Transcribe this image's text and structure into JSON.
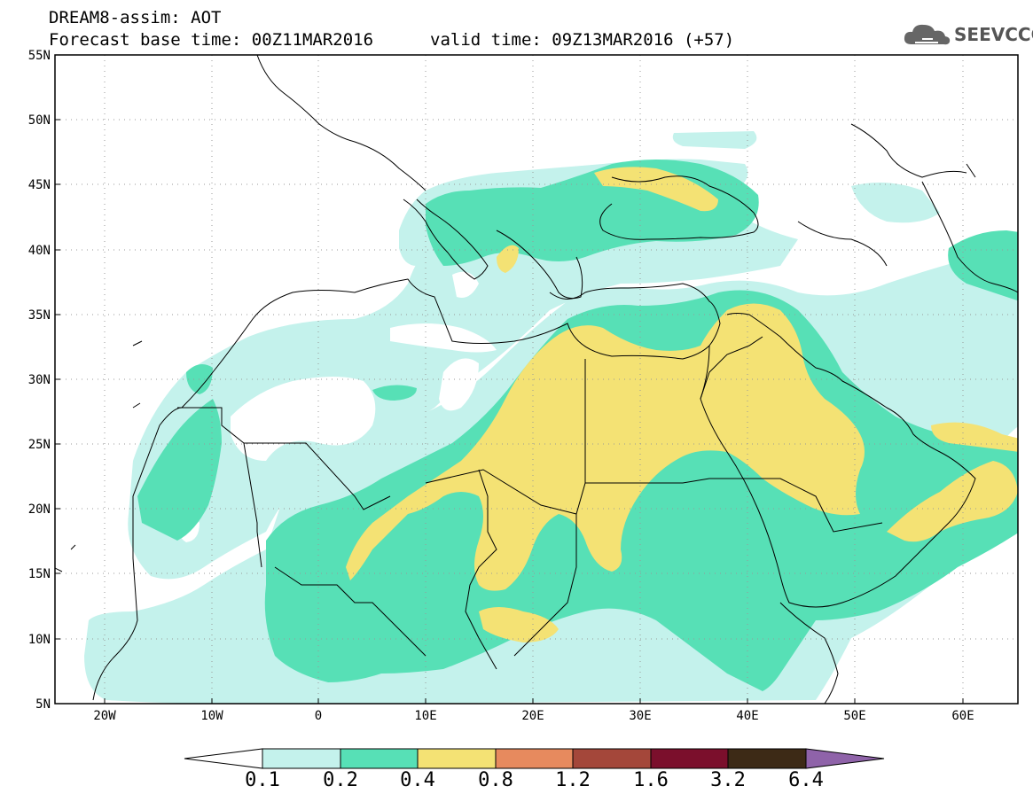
{
  "header": {
    "line1": "DREAM8-assim: AOT",
    "base_time": "Forecast base time: 00Z11MAR2016",
    "valid_time": "valid time: 09Z13MAR2016 (+57)",
    "logo_text": "SEEVCCC"
  },
  "map": {
    "lat_labels": [
      "55N",
      "50N",
      "45N",
      "40N",
      "35N",
      "30N",
      "25N",
      "20N",
      "15N",
      "10N",
      "5N"
    ],
    "lon_labels": [
      "20W",
      "10W",
      "0",
      "10E",
      "20E",
      "30E",
      "40E",
      "50E",
      "60E"
    ],
    "lon_range": [
      -25,
      65
    ],
    "lat_range": [
      5,
      55
    ],
    "gridlines": "dotted"
  },
  "colorbar": {
    "thresholds": [
      "0.1",
      "0.2",
      "0.4",
      "0.8",
      "1.2",
      "1.6",
      "3.2",
      "6.4"
    ],
    "colors": [
      "#ffffff",
      "#c4f2ec",
      "#57e0b6",
      "#f4e274",
      "#e78a5e",
      "#a4473a",
      "#7b0f2c",
      "#3d2a16",
      "#8f63a9"
    ]
  }
}
